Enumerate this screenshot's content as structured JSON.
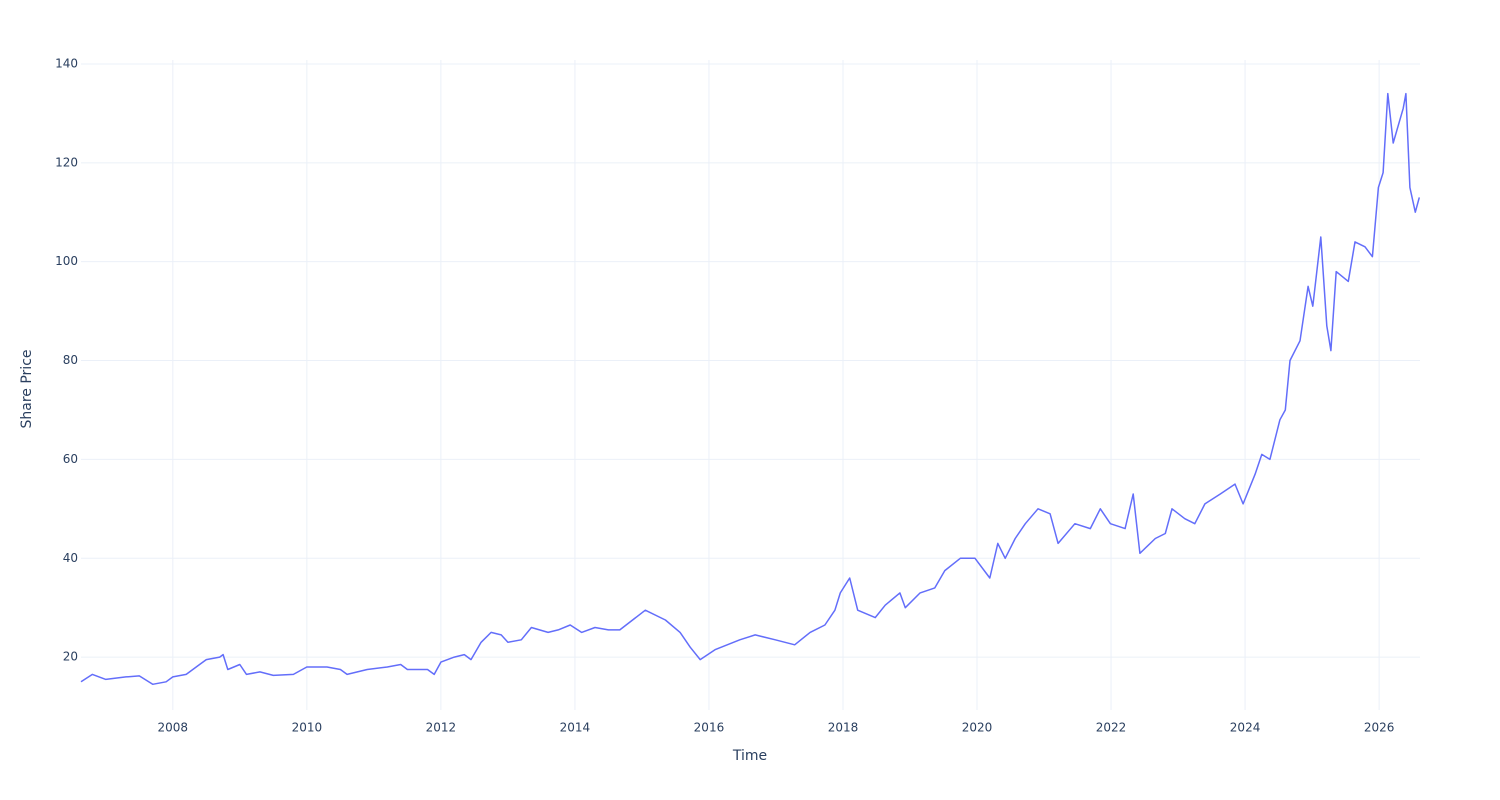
{
  "chart_data": {
    "type": "line",
    "x_label": "Time",
    "y_label": "Share Price",
    "xlim": [
      2006.63,
      2026.61
    ],
    "xticks": [
      2008,
      2010,
      2012,
      2014,
      2016,
      2018,
      2020,
      2022,
      2024,
      2026
    ],
    "ylim": [
      9.3,
      140.8
    ],
    "yticks": [
      20,
      40,
      60,
      80,
      100,
      120,
      140
    ],
    "grid": true,
    "series": [
      {
        "color": "#636efa",
        "x": [
          2006.63,
          2006.8,
          2007.0,
          2007.3,
          2007.5,
          2007.7,
          2007.9,
          2008.0,
          2008.2,
          2008.4,
          2008.5,
          2008.7,
          2008.75,
          2008.82,
          2009.0,
          2009.1,
          2009.3,
          2009.5,
          2009.8,
          2010.0,
          2010.3,
          2010.5,
          2010.6,
          2010.9,
          2011.2,
          2011.4,
          2011.5,
          2011.8,
          2011.9,
          2012.0,
          2012.2,
          2012.35,
          2012.45,
          2012.6,
          2012.75,
          2012.9,
          2013.0,
          2013.2,
          2013.35,
          2013.6,
          2013.75,
          2013.93,
          2014.1,
          2014.3,
          2014.5,
          2014.67,
          2015.05,
          2015.35,
          2015.57,
          2015.72,
          2015.87,
          2016.09,
          2016.46,
          2016.69,
          2016.99,
          2017.28,
          2017.51,
          2017.73,
          2017.88,
          2017.96,
          2018.1,
          2018.22,
          2018.48,
          2018.63,
          2018.85,
          2018.93,
          2019.15,
          2019.37,
          2019.52,
          2019.75,
          2019.97,
          2020.19,
          2020.31,
          2020.42,
          2020.57,
          2020.72,
          2020.91,
          2021.09,
          2021.21,
          2021.46,
          2021.69,
          2021.84,
          2021.99,
          2022.21,
          2022.33,
          2022.43,
          2022.66,
          2022.81,
          2022.91,
          2023.1,
          2023.25,
          2023.4,
          2023.63,
          2023.85,
          2023.97,
          2024.15,
          2024.25,
          2024.37,
          2024.52,
          2024.6,
          2024.67,
          2024.82,
          2024.94,
          2025.01,
          2025.13,
          2025.22,
          2025.28,
          2025.36,
          2025.54,
          2025.64,
          2025.79,
          2025.9,
          2025.99,
          2026.06,
          2026.13,
          2026.21,
          2026.36,
          2026.4,
          2026.46,
          2026.54,
          2026.6
        ],
        "values": [
          15,
          16.5,
          15.5,
          16,
          16.2,
          14.5,
          15,
          16,
          16.5,
          18.5,
          19.5,
          20,
          20.5,
          17.5,
          18.5,
          16.5,
          17,
          16.3,
          16.5,
          18,
          18,
          17.5,
          16.5,
          17.5,
          18,
          18.5,
          17.5,
          17.5,
          16.5,
          19,
          20,
          20.5,
          19.5,
          23,
          25,
          24.5,
          23,
          23.5,
          26,
          25,
          25.5,
          26.5,
          25,
          26,
          25.5,
          25.5,
          29.5,
          27.5,
          25,
          22,
          19.5,
          21.5,
          23.5,
          24.5,
          23.5,
          22.5,
          25,
          26.5,
          29.5,
          33,
          36,
          29.5,
          28,
          30.5,
          33,
          30,
          33,
          34,
          37.5,
          40,
          40,
          36,
          43,
          40,
          44,
          47,
          50,
          49,
          43,
          47,
          46,
          50,
          47,
          46,
          53,
          41,
          44,
          45,
          50,
          48,
          47,
          51,
          53,
          55,
          51,
          57,
          61,
          60,
          68,
          70,
          80,
          84,
          95,
          91,
          105,
          87,
          82,
          98,
          96,
          104,
          103,
          101,
          115,
          118,
          134,
          124,
          131,
          134,
          115,
          110,
          113
        ]
      }
    ]
  }
}
